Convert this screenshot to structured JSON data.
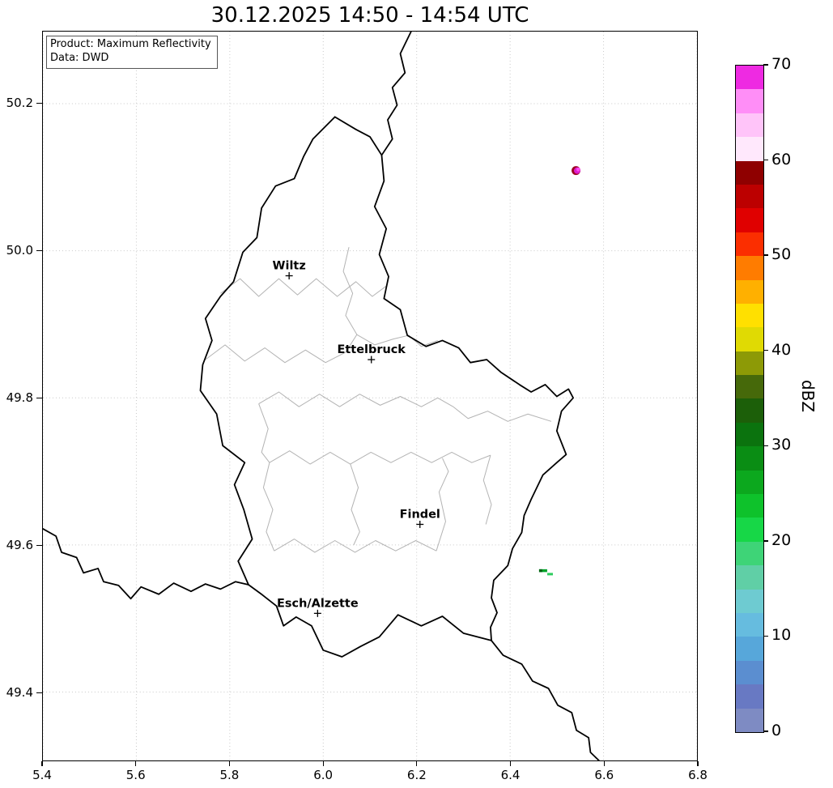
{
  "title": "30.12.2025 14:50 - 14:54 UTC",
  "info_box": {
    "line1": "Product: Maximum Reflectivity",
    "line2": "Data: DWD"
  },
  "axes": {
    "x_range": [
      5.4,
      6.8
    ],
    "y_range": [
      49.307,
      50.298
    ],
    "x_tick_values": [
      5.4,
      5.6,
      5.8,
      6.0,
      6.2,
      6.4,
      6.6,
      6.8
    ],
    "x_tick_labels": [
      "5.4",
      "5.6",
      "5.8",
      "6.0",
      "6.2",
      "6.4",
      "6.6",
      "6.8"
    ],
    "y_tick_values": [
      49.4,
      49.6,
      49.8,
      50.0,
      50.2
    ],
    "y_tick_labels": [
      "49.4",
      "49.6",
      "49.8",
      "50.0",
      "50.2"
    ]
  },
  "style": {
    "grid_color": "#c8c8c8",
    "background": "#ffffff",
    "frame_color": "#000000"
  },
  "colorbar": {
    "label": "dBZ",
    "min": 0,
    "max": 70,
    "tick_values": [
      0,
      10,
      20,
      30,
      40,
      50,
      60,
      70
    ],
    "tick_labels": [
      "0",
      "10",
      "20",
      "30",
      "40",
      "50",
      "60",
      "70"
    ],
    "colors_bottom_to_top": [
      "#7e8bc3",
      "#6879c3",
      "#5b8ed0",
      "#57a7da",
      "#66bcdf",
      "#6ecbd1",
      "#60cfa6",
      "#3ed477",
      "#17d747",
      "#0ec22b",
      "#0ca81e",
      "#0a8d14",
      "#0b730e",
      "#1c5f09",
      "#46690a",
      "#8d9a06",
      "#e0da03",
      "#ffe000",
      "#ffb000",
      "#ff7c00",
      "#fb2e00",
      "#e00000",
      "#bc0000",
      "#8f0000",
      "#ffe8fc",
      "#ffc4f9",
      "#ff8ef7",
      "#ee2ae2"
    ]
  },
  "cities": [
    {
      "name": "Wiltz",
      "lon": 5.927,
      "lat": 49.966
    },
    {
      "name": "Ettelbruck",
      "lon": 6.103,
      "lat": 49.852
    },
    {
      "name": "Findel",
      "lon": 6.207,
      "lat": 49.628
    },
    {
      "name": "Esch/Alzette",
      "lon": 5.988,
      "lat": 49.507
    }
  ],
  "map": {
    "country_border_color": "#000000",
    "district_border_color": "#b3b3b3",
    "country_borders": {
      "luxembourg": [
        [
          6.025,
          50.182
        ],
        [
          6.07,
          50.165
        ],
        [
          6.1,
          50.155
        ],
        [
          6.125,
          50.13
        ],
        [
          6.13,
          50.095
        ],
        [
          6.11,
          50.06
        ],
        [
          6.135,
          50.03
        ],
        [
          6.12,
          49.995
        ],
        [
          6.14,
          49.965
        ],
        [
          6.13,
          49.935
        ],
        [
          6.165,
          49.92
        ],
        [
          6.18,
          49.885
        ],
        [
          6.22,
          49.87
        ],
        [
          6.255,
          49.878
        ],
        [
          6.29,
          49.868
        ],
        [
          6.315,
          49.848
        ],
        [
          6.35,
          49.852
        ],
        [
          6.38,
          49.835
        ],
        [
          6.42,
          49.818
        ],
        [
          6.445,
          49.808
        ],
        [
          6.475,
          49.818
        ],
        [
          6.5,
          49.802
        ],
        [
          6.525,
          49.812
        ],
        [
          6.535,
          49.8
        ],
        [
          6.51,
          49.782
        ],
        [
          6.5,
          49.755
        ],
        [
          6.52,
          49.723
        ],
        [
          6.5,
          49.712
        ],
        [
          6.47,
          49.695
        ],
        [
          6.445,
          49.662
        ],
        [
          6.43,
          49.64
        ],
        [
          6.425,
          49.617
        ],
        [
          6.405,
          49.595
        ],
        [
          6.395,
          49.572
        ],
        [
          6.365,
          49.552
        ],
        [
          6.36,
          49.528
        ],
        [
          6.372,
          49.508
        ],
        [
          6.358,
          49.488
        ],
        [
          6.36,
          49.47
        ],
        [
          6.3,
          49.48
        ],
        [
          6.255,
          49.503
        ],
        [
          6.21,
          49.49
        ],
        [
          6.16,
          49.505
        ],
        [
          6.12,
          49.475
        ],
        [
          6.08,
          49.462
        ],
        [
          6.04,
          49.448
        ],
        [
          6.0,
          49.457
        ],
        [
          5.975,
          49.49
        ],
        [
          5.942,
          49.502
        ],
        [
          5.915,
          49.49
        ],
        [
          5.9,
          49.517
        ],
        [
          5.87,
          49.532
        ],
        [
          5.84,
          49.546
        ],
        [
          5.818,
          49.578
        ],
        [
          5.848,
          49.608
        ],
        [
          5.83,
          49.648
        ],
        [
          5.81,
          49.682
        ],
        [
          5.832,
          49.712
        ],
        [
          5.785,
          49.735
        ],
        [
          5.772,
          49.778
        ],
        [
          5.737,
          49.81
        ],
        [
          5.742,
          49.845
        ],
        [
          5.762,
          49.878
        ],
        [
          5.748,
          49.908
        ],
        [
          5.78,
          49.938
        ],
        [
          5.808,
          49.958
        ],
        [
          5.828,
          49.998
        ],
        [
          5.858,
          50.018
        ],
        [
          5.868,
          50.058
        ],
        [
          5.898,
          50.088
        ],
        [
          5.938,
          50.098
        ],
        [
          5.958,
          50.128
        ],
        [
          5.978,
          50.152
        ],
        [
          6.025,
          50.182
        ]
      ],
      "belgium_germany": [
        [
          6.125,
          50.13
        ],
        [
          6.148,
          50.152
        ],
        [
          6.138,
          50.178
        ],
        [
          6.158,
          50.198
        ],
        [
          6.148,
          50.222
        ],
        [
          6.175,
          50.242
        ],
        [
          6.165,
          50.268
        ],
        [
          6.188,
          50.298
        ]
      ],
      "france_belgium": [
        [
          5.4,
          49.622
        ],
        [
          5.428,
          49.612
        ],
        [
          5.44,
          49.59
        ],
        [
          5.472,
          49.583
        ],
        [
          5.487,
          49.562
        ],
        [
          5.518,
          49.568
        ],
        [
          5.53,
          49.55
        ],
        [
          5.562,
          49.545
        ],
        [
          5.588,
          49.527
        ],
        [
          5.61,
          49.543
        ],
        [
          5.648,
          49.533
        ],
        [
          5.68,
          49.548
        ],
        [
          5.717,
          49.537
        ],
        [
          5.748,
          49.547
        ],
        [
          5.78,
          49.54
        ],
        [
          5.812,
          49.55
        ],
        [
          5.84,
          49.546
        ]
      ],
      "france_germany": [
        [
          6.36,
          49.47
        ],
        [
          6.385,
          49.45
        ],
        [
          6.425,
          49.438
        ],
        [
          6.448,
          49.415
        ],
        [
          6.482,
          49.405
        ],
        [
          6.502,
          49.382
        ],
        [
          6.532,
          49.372
        ],
        [
          6.542,
          49.348
        ],
        [
          6.568,
          49.338
        ],
        [
          6.572,
          49.318
        ],
        [
          6.59,
          49.307
        ]
      ]
    },
    "district_borders": [
      [
        [
          5.78,
          49.942
        ],
        [
          5.822,
          49.962
        ],
        [
          5.862,
          49.938
        ],
        [
          5.905,
          49.962
        ],
        [
          5.945,
          49.94
        ],
        [
          5.985,
          49.962
        ],
        [
          6.03,
          49.938
        ],
        [
          6.07,
          49.958
        ],
        [
          6.105,
          49.938
        ],
        [
          6.135,
          49.952
        ]
      ],
      [
        [
          6.055,
          50.005
        ],
        [
          6.043,
          49.972
        ],
        [
          6.063,
          49.942
        ],
        [
          6.048,
          49.912
        ],
        [
          6.072,
          49.886
        ],
        [
          6.11,
          49.872
        ],
        [
          6.15,
          49.88
        ],
        [
          6.183,
          49.885
        ]
      ],
      [
        [
          5.748,
          49.852
        ],
        [
          5.79,
          49.872
        ],
        [
          5.832,
          49.85
        ],
        [
          5.875,
          49.868
        ],
        [
          5.918,
          49.848
        ],
        [
          5.962,
          49.865
        ],
        [
          6.005,
          49.848
        ],
        [
          6.048,
          49.862
        ],
        [
          6.072,
          49.886
        ]
      ],
      [
        [
          5.862,
          49.792
        ],
        [
          5.905,
          49.808
        ],
        [
          5.948,
          49.788
        ],
        [
          5.992,
          49.805
        ],
        [
          6.035,
          49.788
        ],
        [
          6.078,
          49.805
        ],
        [
          6.122,
          49.79
        ],
        [
          6.165,
          49.802
        ],
        [
          6.21,
          49.788
        ],
        [
          6.245,
          49.8
        ],
        [
          6.278,
          49.788
        ]
      ],
      [
        [
          6.278,
          49.788
        ],
        [
          6.31,
          49.772
        ],
        [
          6.352,
          49.782
        ],
        [
          6.395,
          49.768
        ],
        [
          6.438,
          49.778
        ],
        [
          6.488,
          49.768
        ]
      ],
      [
        [
          5.885,
          49.712
        ],
        [
          5.928,
          49.728
        ],
        [
          5.972,
          49.71
        ],
        [
          6.015,
          49.726
        ],
        [
          6.058,
          49.71
        ],
        [
          6.102,
          49.726
        ],
        [
          6.145,
          49.712
        ],
        [
          6.188,
          49.726
        ],
        [
          6.232,
          49.712
        ],
        [
          6.275,
          49.726
        ],
        [
          6.318,
          49.712
        ],
        [
          6.358,
          49.722
        ]
      ],
      [
        [
          5.862,
          49.792
        ],
        [
          5.882,
          49.758
        ],
        [
          5.868,
          49.726
        ],
        [
          5.885,
          49.712
        ],
        [
          5.872,
          49.678
        ],
        [
          5.892,
          49.648
        ],
        [
          5.878,
          49.618
        ],
        [
          5.895,
          49.592
        ]
      ],
      [
        [
          5.895,
          49.592
        ],
        [
          5.938,
          49.608
        ],
        [
          5.982,
          49.59
        ],
        [
          6.025,
          49.606
        ],
        [
          6.068,
          49.59
        ],
        [
          6.112,
          49.606
        ],
        [
          6.155,
          49.592
        ],
        [
          6.198,
          49.606
        ],
        [
          6.242,
          49.592
        ]
      ],
      [
        [
          6.242,
          49.592
        ],
        [
          6.262,
          49.632
        ],
        [
          6.248,
          49.672
        ],
        [
          6.268,
          49.7
        ],
        [
          6.255,
          49.718
        ]
      ],
      [
        [
          6.358,
          49.722
        ],
        [
          6.343,
          49.688
        ],
        [
          6.36,
          49.655
        ],
        [
          6.348,
          49.628
        ]
      ],
      [
        [
          6.058,
          49.71
        ],
        [
          6.075,
          49.678
        ],
        [
          6.06,
          49.648
        ],
        [
          6.078,
          49.618
        ],
        [
          6.065,
          49.6
        ]
      ],
      [
        [
          6.183,
          49.885
        ],
        [
          6.21,
          49.87
        ],
        [
          6.245,
          49.878
        ]
      ]
    ]
  },
  "echoes": [
    {
      "shape": "circle",
      "lon": 6.541,
      "lat": 50.109,
      "r": 5.5,
      "color": "#9d0022"
    },
    {
      "shape": "circle",
      "lon": 6.5435,
      "lat": 50.109,
      "r": 4.0,
      "color": "#dd1ccf"
    },
    {
      "shape": "circle",
      "lon": 6.546,
      "lat": 50.1105,
      "r": 2.4,
      "color": "#ff4df2"
    },
    {
      "shape": "rect",
      "lon": 6.462,
      "lat": 49.567,
      "w": 10,
      "h": 3.5,
      "color": "#00a32a"
    },
    {
      "shape": "rect",
      "lon": 6.462,
      "lat": 49.567,
      "w": 4,
      "h": 3.5,
      "color": "#006414"
    },
    {
      "shape": "rect",
      "lon": 6.4795,
      "lat": 49.562,
      "w": 7,
      "h": 3,
      "color": "#2ecc5e"
    }
  ]
}
